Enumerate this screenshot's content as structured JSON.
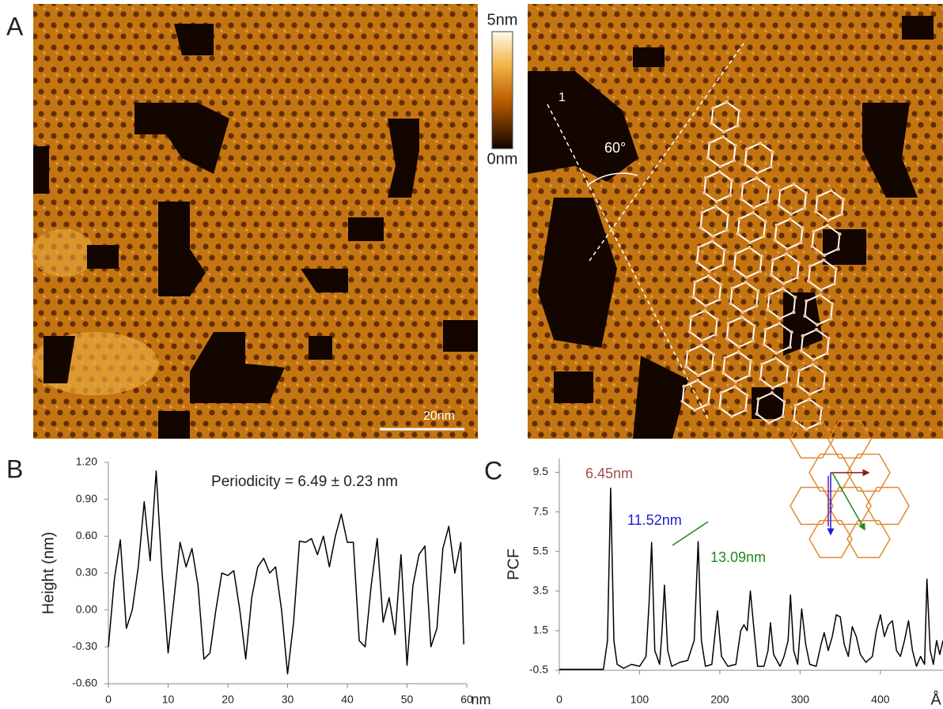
{
  "panel_labels": [
    "A",
    "B",
    "C"
  ],
  "colorbar": {
    "max_label": "5nm",
    "min_label": "0nm"
  },
  "scale_bar": "20nm",
  "image_annotations": {
    "line_label": "1",
    "angle": "60°"
  },
  "chart_data": [
    {
      "type": "line",
      "annotation": "Periodicity = 6.49 ± 0.23  nm",
      "y_label": "Height (nm)",
      "x_unit": "nm",
      "xlim": [
        0,
        60
      ],
      "xticks": [
        0,
        10,
        20,
        30,
        40,
        50,
        60
      ],
      "ylim": [
        -0.6,
        1.2
      ],
      "yticks": [
        {
          "value": -0.6,
          "label": "-0.60"
        },
        {
          "value": -0.3,
          "label": "-0.30"
        },
        {
          "value": 0,
          "label": "0.00"
        },
        {
          "value": 0.3,
          "label": "0.30"
        },
        {
          "value": 0.6,
          "label": "0.60"
        },
        {
          "value": 0.9,
          "label": "0.90"
        },
        {
          "value": 1.2,
          "label": "1.20"
        }
      ],
      "series": [
        {
          "color": "#000000",
          "x": [
            0,
            1,
            2,
            3,
            4,
            5,
            6,
            7,
            8,
            9,
            10,
            11,
            12,
            13,
            14,
            15,
            16,
            17,
            18,
            19,
            20,
            21,
            22,
            23,
            24,
            25,
            26,
            27,
            28,
            29,
            30,
            31,
            32,
            33,
            34,
            35,
            36,
            37,
            38,
            39,
            40,
            41,
            42,
            43,
            44,
            45,
            46,
            47,
            48,
            49,
            50,
            51,
            52,
            53,
            54,
            55,
            56,
            57,
            58,
            59,
            59.5
          ],
          "values": [
            -0.3,
            0.25,
            0.57,
            -0.15,
            0.0,
            0.35,
            0.88,
            0.4,
            1.13,
            0.3,
            -0.35,
            0.1,
            0.55,
            0.35,
            0.5,
            0.2,
            -0.4,
            -0.35,
            0.0,
            0.3,
            0.28,
            0.32,
            0.0,
            -0.4,
            0.1,
            0.35,
            0.42,
            0.3,
            0.35,
            0.0,
            -0.52,
            -0.1,
            0.56,
            0.55,
            0.58,
            0.45,
            0.6,
            0.35,
            0.6,
            0.78,
            0.55,
            0.55,
            -0.25,
            -0.3,
            0.2,
            0.58,
            -0.1,
            0.1,
            -0.2,
            0.45,
            -0.45,
            0.2,
            0.45,
            0.52,
            -0.3,
            -0.15,
            0.5,
            0.68,
            0.3,
            0.55,
            -0.28
          ]
        }
      ]
    },
    {
      "type": "line",
      "y_label": "PCF",
      "x_unit": "Å",
      "annotations": [
        {
          "text": "6.45nm",
          "color": "#a0504a"
        },
        {
          "text": "11.52nm",
          "color": "#1c1cd0"
        },
        {
          "text": "13.09nm",
          "color": "#1d8a1d"
        }
      ],
      "xlim": [
        0,
        478
      ],
      "xticks": [
        0,
        100,
        200,
        300,
        400
      ],
      "ylim": [
        -0.5,
        10.2
      ],
      "yticks": [
        -0.5,
        1.5,
        3.5,
        5.5,
        7.5,
        9.5
      ],
      "series": [
        {
          "color": "#000000",
          "x": [
            0,
            55,
            60,
            64,
            68,
            72,
            80,
            90,
            100,
            108,
            112,
            115,
            119,
            125,
            128,
            131,
            135,
            140,
            150,
            160,
            168,
            173,
            177,
            182,
            190,
            197,
            202,
            210,
            220,
            226,
            230,
            234,
            238,
            242,
            247,
            255,
            260,
            263,
            267,
            275,
            280,
            285,
            288,
            292,
            297,
            302,
            307,
            312,
            320,
            326,
            330,
            335,
            340,
            345,
            350,
            355,
            360,
            365,
            370,
            375,
            382,
            390,
            395,
            400,
            405,
            410,
            415,
            420,
            425,
            430,
            435,
            440,
            445,
            450,
            455,
            458,
            462,
            466,
            470,
            474,
            478
          ],
          "values": [
            -0.45,
            -0.45,
            1,
            8.7,
            1,
            -0.2,
            -0.4,
            -0.2,
            -0.3,
            0.2,
            3,
            5.95,
            0.5,
            -0.2,
            1.5,
            3.8,
            0.5,
            -0.3,
            -0.1,
            0,
            1,
            6.0,
            1,
            -0.3,
            -0.2,
            2.5,
            0.2,
            -0.3,
            -0.2,
            1.5,
            1.8,
            1.5,
            3.5,
            1.8,
            -0.3,
            -0.3,
            0.5,
            1.9,
            0.3,
            -0.3,
            0.2,
            1,
            3.3,
            0.5,
            -0.2,
            2.6,
            0.8,
            -0.2,
            -0.3,
            0.8,
            1.4,
            0.5,
            1.2,
            2.3,
            2.2,
            0.8,
            0.2,
            1.7,
            1.2,
            0.3,
            -0.1,
            0.2,
            1.5,
            2.3,
            1.2,
            1.8,
            2.0,
            0.5,
            0.2,
            1.0,
            2.0,
            0.5,
            -0.3,
            0.2,
            -0.2,
            4.1,
            0.5,
            -0.2,
            1.0,
            0.3,
            1.0
          ]
        }
      ]
    }
  ]
}
